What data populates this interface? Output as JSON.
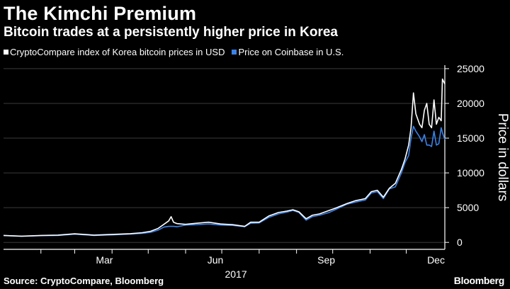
{
  "title": "The Kimchi Premium",
  "subtitle": "Bitcoin trades at a persistently higher price in Korea",
  "source": "Source: CryptoCompare, Bloomberg",
  "brand": "Bloomberg",
  "colors": {
    "korea": "#ffffff",
    "us": "#3a82e8",
    "background": "#000000",
    "grid": "#3a3a3a"
  },
  "chart_data": {
    "type": "line",
    "title": "",
    "ylabel": "Price in dollars",
    "xlabel": "2017",
    "ylim": [
      -1000,
      25500
    ],
    "yticks": [
      0,
      5000,
      10000,
      15000,
      20000,
      25000
    ],
    "xticks": [
      {
        "label": "Mar",
        "day": 59
      },
      {
        "label": "Jun",
        "day": 151
      },
      {
        "label": "Sep",
        "day": 243
      },
      {
        "label": "Dec",
        "day": 334
      }
    ],
    "xticklabels": [
      "Mar",
      "Jun",
      "Sep",
      "Dec"
    ],
    "x_unit": "day of year 2017",
    "grid": true,
    "legend_position": "top-left",
    "series": [
      {
        "name": "CryptoCompare index of Korea bitcoin prices in USD",
        "points": [
          [
            0,
            1000
          ],
          [
            15,
            900
          ],
          [
            31,
            1000
          ],
          [
            45,
            1050
          ],
          [
            59,
            1230
          ],
          [
            75,
            1050
          ],
          [
            90,
            1150
          ],
          [
            105,
            1250
          ],
          [
            115,
            1400
          ],
          [
            122,
            1600
          ],
          [
            128,
            2000
          ],
          [
            133,
            2600
          ],
          [
            137,
            3100
          ],
          [
            139,
            3700
          ],
          [
            141,
            2900
          ],
          [
            144,
            2700
          ],
          [
            151,
            2600
          ],
          [
            160,
            2750
          ],
          [
            170,
            2900
          ],
          [
            180,
            2650
          ],
          [
            190,
            2550
          ],
          [
            200,
            2300
          ],
          [
            205,
            2900
          ],
          [
            212,
            2900
          ],
          [
            220,
            3800
          ],
          [
            228,
            4300
          ],
          [
            235,
            4500
          ],
          [
            240,
            4700
          ],
          [
            245,
            4400
          ],
          [
            251,
            3400
          ],
          [
            256,
            3900
          ],
          [
            262,
            4100
          ],
          [
            270,
            4600
          ],
          [
            275,
            4900
          ],
          [
            285,
            5600
          ],
          [
            292,
            6000
          ],
          [
            300,
            6300
          ],
          [
            305,
            7300
          ],
          [
            310,
            7500
          ],
          [
            315,
            6500
          ],
          [
            320,
            7800
          ],
          [
            325,
            8500
          ],
          [
            330,
            10500
          ],
          [
            333,
            12000
          ],
          [
            336,
            14000
          ],
          [
            338,
            16500
          ],
          [
            340,
            21500
          ],
          [
            342,
            18500
          ],
          [
            345,
            17000
          ],
          [
            347,
            16500
          ],
          [
            349,
            19000
          ],
          [
            351,
            20000
          ],
          [
            353,
            17000
          ],
          [
            355,
            16500
          ],
          [
            357,
            20500
          ],
          [
            359,
            17000
          ],
          [
            361,
            18000
          ],
          [
            363,
            17500
          ],
          [
            364,
            23500
          ],
          [
            366,
            22800
          ]
        ]
      },
      {
        "name": "Price on Coinbase in U.S.",
        "points": [
          [
            0,
            1000
          ],
          [
            15,
            880
          ],
          [
            31,
            970
          ],
          [
            45,
            1000
          ],
          [
            59,
            1180
          ],
          [
            75,
            1000
          ],
          [
            90,
            1080
          ],
          [
            105,
            1200
          ],
          [
            115,
            1300
          ],
          [
            122,
            1450
          ],
          [
            128,
            1750
          ],
          [
            133,
            2200
          ],
          [
            137,
            2300
          ],
          [
            141,
            2300
          ],
          [
            144,
            2250
          ],
          [
            151,
            2500
          ],
          [
            160,
            2550
          ],
          [
            170,
            2650
          ],
          [
            180,
            2500
          ],
          [
            190,
            2450
          ],
          [
            200,
            2250
          ],
          [
            205,
            2750
          ],
          [
            212,
            2800
          ],
          [
            220,
            3600
          ],
          [
            228,
            4100
          ],
          [
            235,
            4350
          ],
          [
            240,
            4600
          ],
          [
            245,
            4300
          ],
          [
            251,
            3200
          ],
          [
            256,
            3700
          ],
          [
            262,
            3900
          ],
          [
            270,
            4300
          ],
          [
            275,
            4700
          ],
          [
            285,
            5500
          ],
          [
            292,
            5800
          ],
          [
            300,
            6100
          ],
          [
            305,
            7100
          ],
          [
            310,
            7300
          ],
          [
            315,
            6300
          ],
          [
            320,
            7700
          ],
          [
            325,
            8000
          ],
          [
            330,
            10000
          ],
          [
            333,
            11500
          ],
          [
            336,
            12500
          ],
          [
            338,
            15000
          ],
          [
            340,
            16700
          ],
          [
            342,
            16000
          ],
          [
            345,
            15200
          ],
          [
            347,
            14500
          ],
          [
            349,
            15500
          ],
          [
            351,
            14000
          ],
          [
            353,
            14000
          ],
          [
            355,
            13800
          ],
          [
            357,
            16000
          ],
          [
            359,
            14000
          ],
          [
            361,
            14200
          ],
          [
            363,
            16500
          ],
          [
            364,
            15800
          ],
          [
            366,
            14800
          ]
        ]
      }
    ]
  }
}
